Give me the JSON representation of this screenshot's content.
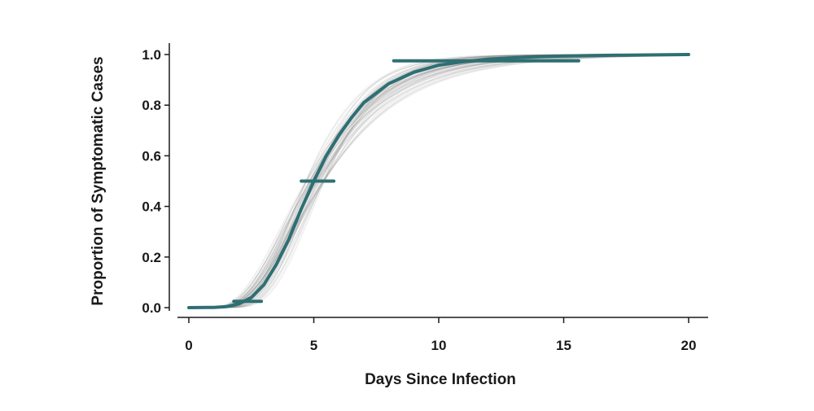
{
  "chart_data": {
    "type": "line",
    "title": "",
    "xlabel": "Days Since Infection",
    "ylabel": "Proportion of Symptomatic Cases",
    "xlim": [
      0,
      20
    ],
    "ylim": [
      0,
      1
    ],
    "x_ticks": [
      0,
      5,
      10,
      15,
      20
    ],
    "x_tick_labels": [
      "0",
      "5",
      "10",
      "15",
      "20"
    ],
    "y_ticks": [
      0,
      0.2,
      0.4,
      0.6,
      0.8,
      1.0
    ],
    "y_tick_labels": [
      "0.0",
      "0.2",
      "0.4",
      "0.6",
      "0.8",
      "1.0"
    ],
    "grid": false,
    "main_series": {
      "x": [
        0,
        1,
        1.5,
        2,
        2.5,
        3,
        3.5,
        4,
        4.5,
        5,
        5.5,
        6,
        6.5,
        7,
        8,
        9,
        10,
        11,
        12,
        14,
        16,
        18,
        20
      ],
      "y": [
        0,
        0.001,
        0.004,
        0.015,
        0.04,
        0.09,
        0.17,
        0.27,
        0.39,
        0.5,
        0.6,
        0.68,
        0.75,
        0.81,
        0.885,
        0.93,
        0.958,
        0.972,
        0.982,
        0.992,
        0.996,
        0.998,
        1.0
      ]
    },
    "ensemble_curves": {
      "count": 70,
      "median_log_mean": 1.62,
      "median_log_sd": 0.42,
      "log_mean_spread": 0.08,
      "log_sd_spread": 0.1
    },
    "interval_bars": [
      {
        "y": 0.025,
        "x_low": 1.8,
        "x_high": 2.9
      },
      {
        "y": 0.5,
        "x_low": 4.5,
        "x_high": 5.8
      },
      {
        "y": 0.975,
        "x_low": 8.2,
        "x_high": 15.6
      }
    ],
    "colors": {
      "main_line": "#2e6f73",
      "ensemble": "#7a7a7a",
      "axis": "#1a1a1a"
    }
  }
}
